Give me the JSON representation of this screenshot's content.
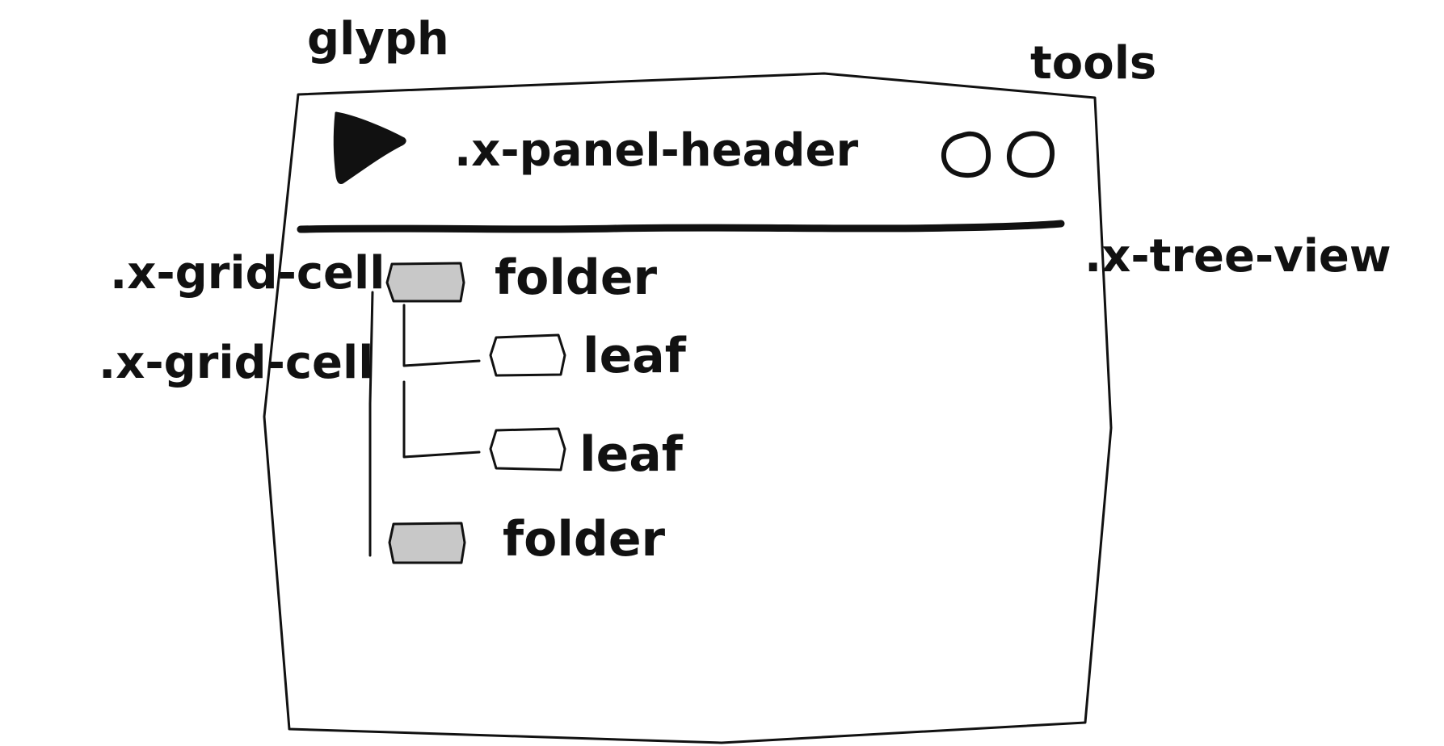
{
  "callouts": {
    "glyph": "glyph",
    "tools": "tools",
    "tree_view": ".x-tree-view",
    "grid_cell_1": ".x-grid-cell",
    "grid_cell_2": ".x-grid-cell"
  },
  "panel": {
    "header_label": ".x-panel-header",
    "tool_icons": [
      "circle-tool-icon",
      "circle-tool-icon"
    ]
  },
  "tree": {
    "nodes": [
      {
        "label": "folder",
        "type": "folder"
      },
      {
        "label": "leaf",
        "type": "leaf"
      },
      {
        "label": "leaf",
        "type": "leaf"
      },
      {
        "label": "folder",
        "type": "folder"
      }
    ]
  },
  "colors": {
    "ink": "#111111",
    "folder_fill": "#c8c8c8",
    "leaf_fill": "#ffffff",
    "background": "#ffffff"
  }
}
